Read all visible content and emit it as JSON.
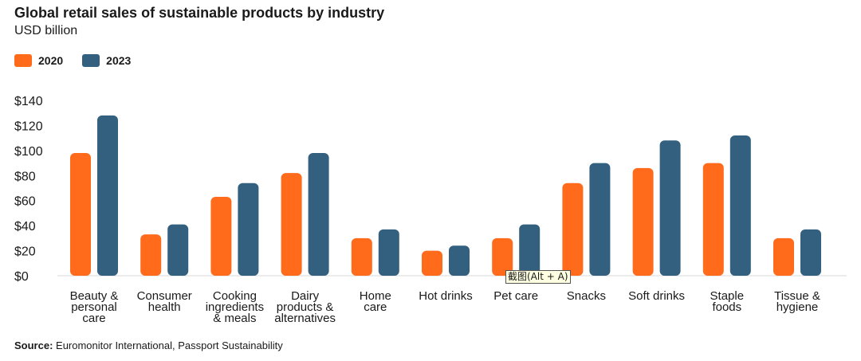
{
  "chart_data": {
    "type": "bar",
    "title": "Global retail sales of sustainable products by industry",
    "subtitle": "USD billion",
    "ylim": [
      0,
      140
    ],
    "yticks": [
      "$0",
      "$20",
      "$40",
      "$60",
      "$80",
      "$100",
      "$120",
      "$140"
    ],
    "categories": [
      [
        "Beauty &",
        "personal",
        "care"
      ],
      [
        "Consumer",
        "health"
      ],
      [
        "Cooking",
        "ingredients",
        "& meals"
      ],
      [
        "Dairy",
        "products &",
        "alternatives"
      ],
      [
        "Home",
        "care"
      ],
      [
        "Hot drinks"
      ],
      [
        "Pet care"
      ],
      [
        "Snacks"
      ],
      [
        "Soft drinks"
      ],
      [
        "Staple",
        "foods"
      ],
      [
        "Tissue &",
        "hygiene"
      ]
    ],
    "series": [
      {
        "name": "2020",
        "color": "#FF6B1A",
        "values": [
          98,
          33,
          63,
          82,
          30,
          20,
          30,
          74,
          86,
          90,
          30
        ]
      },
      {
        "name": "2023",
        "color": "#33607E",
        "values": [
          128,
          41,
          74,
          98,
          37,
          24,
          41,
          90,
          108,
          112,
          37
        ]
      }
    ],
    "legend_position": "top-left",
    "grid": false
  },
  "source": {
    "label": "Source:",
    "text": " Euromonitor International, Passport Sustainability"
  },
  "tooltip": "截图(Alt + A)"
}
